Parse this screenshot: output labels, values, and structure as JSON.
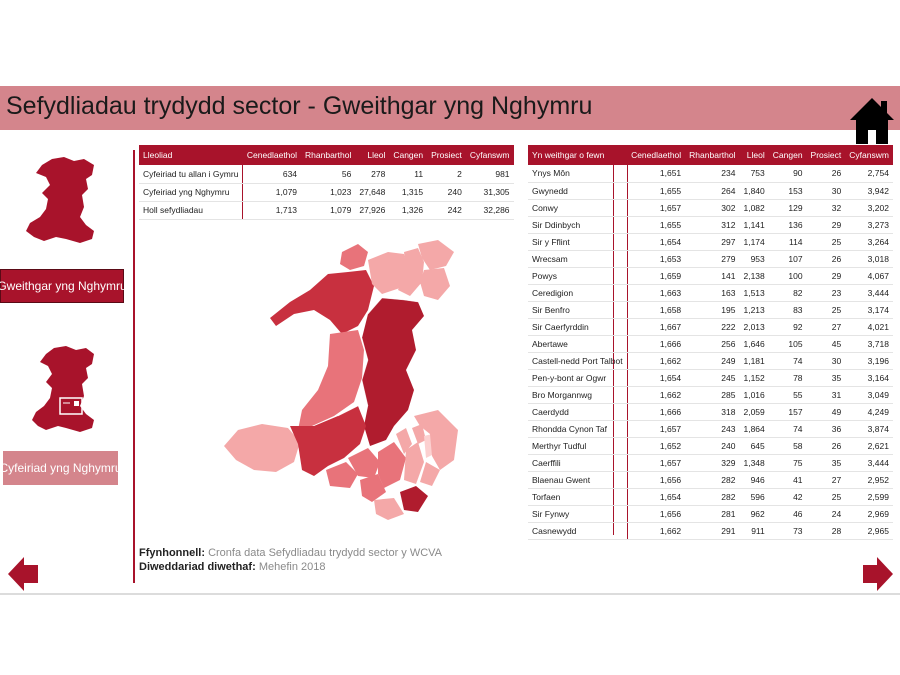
{
  "header": {
    "title": "Sefydliadau trydydd sector - Gweithgar yng Nghymru",
    "home_icon": "home-icon"
  },
  "nav": {
    "active_label": "Gweithgar yng Nghymru",
    "inactive_label": "Cyfeiriad yng Nghymru"
  },
  "colors": {
    "accent": "#a8132b",
    "title_bar": "#d4858c",
    "map_light": "#f4a8a8",
    "map_mid": "#e8737a",
    "map_dark": "#c8303f",
    "map_darkest": "#b01c2e"
  },
  "summary_table": {
    "headers": [
      "Lleoliad",
      "Cenedlaethol",
      "Rhanbarthol",
      "Lleol",
      "Cangen",
      "Prosiect",
      "Cyfanswm"
    ],
    "rows": [
      [
        "Cyfeiriad tu allan i Gymru",
        "634",
        "56",
        "278",
        "11",
        "2",
        "981"
      ],
      [
        "Cyfeiriad yng Nghymru",
        "1,079",
        "1,023",
        "27,648",
        "1,315",
        "240",
        "31,305"
      ],
      [
        "Holl sefydliadau",
        "1,713",
        "1,079",
        "27,926",
        "1,326",
        "242",
        "32,286"
      ]
    ]
  },
  "area_table": {
    "headers": [
      "Yn weithgar o fewn",
      "Cenedlaethol",
      "Rhanbarthol",
      "Lleol",
      "Cangen",
      "Prosiect",
      "Cyfanswm"
    ],
    "rows": [
      [
        "Ynys Môn",
        "1,651",
        "234",
        "753",
        "90",
        "26",
        "2,754"
      ],
      [
        "Gwynedd",
        "1,655",
        "264",
        "1,840",
        "153",
        "30",
        "3,942"
      ],
      [
        "Conwy",
        "1,657",
        "302",
        "1,082",
        "129",
        "32",
        "3,202"
      ],
      [
        "Sir Ddinbych",
        "1,655",
        "312",
        "1,141",
        "136",
        "29",
        "3,273"
      ],
      [
        "Sir y Fflint",
        "1,654",
        "297",
        "1,174",
        "114",
        "25",
        "3,264"
      ],
      [
        "Wrecsam",
        "1,653",
        "279",
        "953",
        "107",
        "26",
        "3,018"
      ],
      [
        "Powys",
        "1,659",
        "141",
        "2,138",
        "100",
        "29",
        "4,067"
      ],
      [
        "Ceredigion",
        "1,663",
        "163",
        "1,513",
        "82",
        "23",
        "3,444"
      ],
      [
        "Sir Benfro",
        "1,658",
        "195",
        "1,213",
        "83",
        "25",
        "3,174"
      ],
      [
        "Sir Caerfyrddin",
        "1,667",
        "222",
        "2,013",
        "92",
        "27",
        "4,021"
      ],
      [
        "Abertawe",
        "1,666",
        "256",
        "1,646",
        "105",
        "45",
        "3,718"
      ],
      [
        "Castell-nedd Port Talbot",
        "1,662",
        "249",
        "1,181",
        "74",
        "30",
        "3,196"
      ],
      [
        "Pen-y-bont ar Ogwr",
        "1,654",
        "245",
        "1,152",
        "78",
        "35",
        "3,164"
      ],
      [
        "Bro Morgannwg",
        "1,662",
        "285",
        "1,016",
        "55",
        "31",
        "3,049"
      ],
      [
        "Caerdydd",
        "1,666",
        "318",
        "2,059",
        "157",
        "49",
        "4,249"
      ],
      [
        "Rhondda Cynon Taf",
        "1,657",
        "243",
        "1,864",
        "74",
        "36",
        "3,874"
      ],
      [
        "Merthyr Tudful",
        "1,652",
        "240",
        "645",
        "58",
        "26",
        "2,621"
      ],
      [
        "Caerffili",
        "1,657",
        "329",
        "1,348",
        "75",
        "35",
        "3,444"
      ],
      [
        "Blaenau Gwent",
        "1,656",
        "282",
        "946",
        "41",
        "27",
        "2,952"
      ],
      [
        "Torfaen",
        "1,654",
        "282",
        "596",
        "42",
        "25",
        "2,599"
      ],
      [
        "Sir Fynwy",
        "1,656",
        "281",
        "962",
        "46",
        "24",
        "2,969"
      ],
      [
        "Casnewydd",
        "1,662",
        "291",
        "911",
        "73",
        "28",
        "2,965"
      ]
    ]
  },
  "source": {
    "label": "Ffynhonnell:",
    "text": "Cronfa data Sefydliadau trydydd sector y WCVA",
    "updated_label": "Diweddariad diwethaf:",
    "updated_value": "Mehefin 2018"
  }
}
